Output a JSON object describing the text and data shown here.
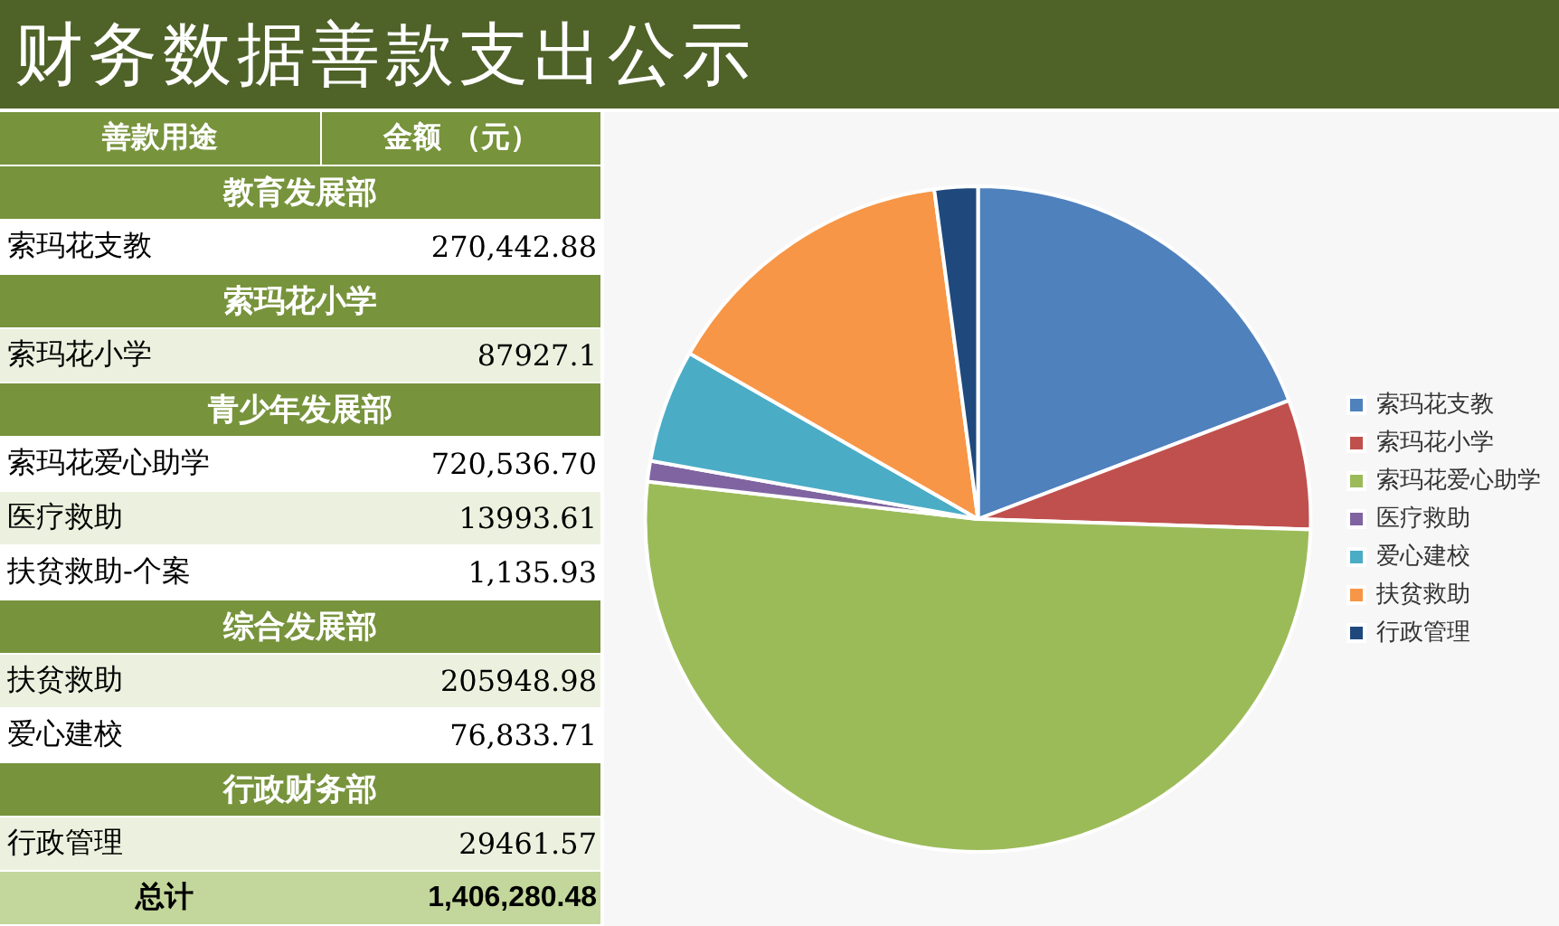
{
  "chart_data": [
    {
      "type": "other",
      "title": "财务数据善款支出公示",
      "xlabel": "善款用途",
      "ylabel": "金额 （元）",
      "categories": [
        "教育发展部",
        "索玛花支教",
        "索玛花小学",
        "索玛花小学",
        "青少年发展部",
        "索玛花爱心助学",
        "医疗救助",
        "扶贫救助-个案",
        "综合发展部",
        "扶贫救助",
        "爱心建校",
        "行政财务部",
        "行政管理",
        "总计"
      ],
      "values": [
        null,
        270442.88,
        null,
        87927.1,
        null,
        720536.7,
        13993.61,
        1135.93,
        null,
        205948.98,
        76833.71,
        null,
        29461.57,
        1406280.48
      ],
      "value_labels": [
        null,
        "270,442.88",
        null,
        "87927.1",
        null,
        "720,536.70",
        "13993.61",
        "1,135.93",
        null,
        "205948.98",
        "76,833.71",
        null,
        "29461.57",
        "1,406,280.48"
      ]
    },
    {
      "type": "pie",
      "categories": [
        "索玛花支教",
        "索玛花小学",
        "索玛花爱心助学",
        "医疗救助",
        "爱心建校",
        "扶贫救助",
        "行政管理"
      ],
      "values": [
        19.2,
        6.3,
        51.3,
        1.0,
        5.5,
        14.6,
        2.1
      ],
      "colors": [
        "#4f81bd",
        "#c0504d",
        "#9bbb59",
        "#8064a2",
        "#4bacc6",
        "#f79646",
        "#1f497d"
      ],
      "legend": "right"
    }
  ]
}
